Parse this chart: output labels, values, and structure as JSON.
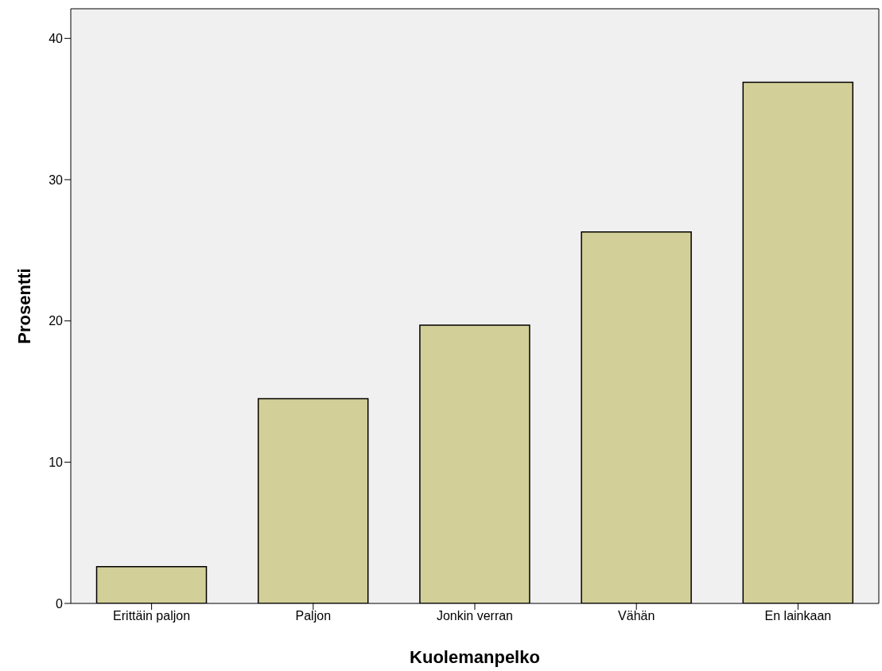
{
  "chart_data": {
    "type": "bar",
    "xlabel": "Kuolemanpelko",
    "ylabel": "Prosentti",
    "categories": [
      "Erittäin paljon",
      "Paljon",
      "Jonkin verran",
      "Vähän",
      "En lainkaan"
    ],
    "values": [
      2.6,
      14.5,
      19.7,
      26.3,
      36.9
    ],
    "color": "#d3cf98",
    "ylim": [
      0,
      42.1
    ],
    "yticks": [
      0,
      10,
      20,
      30,
      40
    ],
    "grid": false
  }
}
